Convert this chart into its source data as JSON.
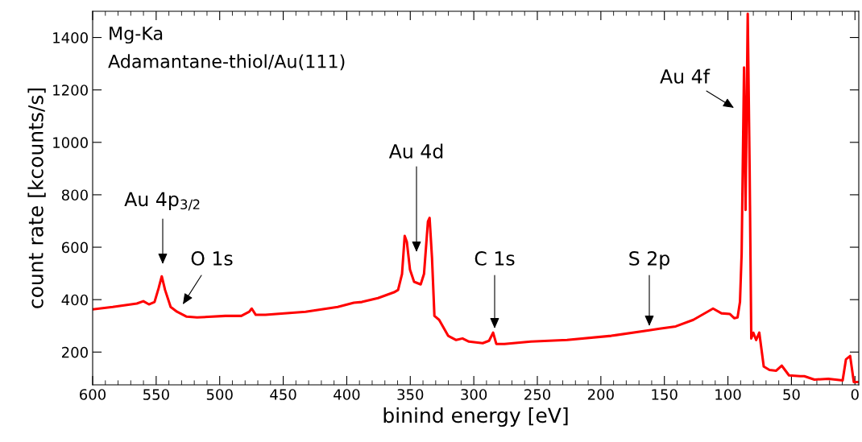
{
  "chart_data": {
    "type": "line",
    "xlabel": "binind energy [eV]",
    "ylabel": "count rate [kcounts/s]",
    "xlim": [
      600,
      -3
    ],
    "xticks": [
      600,
      550,
      500,
      450,
      400,
      350,
      300,
      250,
      200,
      150,
      100,
      50,
      0
    ],
    "ylim": [
      75,
      1500
    ],
    "yticks": [
      200,
      400,
      600,
      800,
      1000,
      1200,
      1400
    ],
    "grid": false,
    "marker": "none",
    "line_style": "solid",
    "series": [
      {
        "color": "#ff0000",
        "x": [
          600,
          584.2,
          565.2,
          560.1,
          555.7,
          551.3,
          548.1,
          545.6,
          543.0,
          538.6,
          533.6,
          526.0,
          517.8,
          495.6,
          483.0,
          476.7,
          474.8,
          471.6,
          464.0,
          432.4,
          407.1,
          394.4,
          388.1,
          375.4,
          362.8,
          359.6,
          356.5,
          354.4,
          352.7,
          350.2,
          347.0,
          341.8,
          339.2,
          336.1,
          334.8,
          332.9,
          331.0,
          327.3,
          320.2,
          313.9,
          308.9,
          303.8,
          293.0,
          288.0,
          284.8,
          282.3,
          275.9,
          255.1,
          226.6,
          191.8,
          162.0,
          153.8,
          141.1,
          127.2,
          111.7,
          105.1,
          98.4,
          94.9,
          92.4,
          90.5,
          89.2,
          87.3,
          86.1,
          84.4,
          82.9,
          81.6,
          80.0,
          77.8,
          75.3,
          71.8,
          67.3,
          62.0,
          57.6,
          51.9,
          43.0,
          39.9,
          31.9,
          20.9,
          9.7,
          7.1,
          3.8,
          0.9,
          -1.9
        ],
        "values": [
          363,
          372,
          385,
          394,
          382,
          391,
          443,
          489,
          437,
          372,
          354,
          335,
          332,
          338,
          338,
          354,
          366,
          342,
          342,
          354,
          372,
          388,
          391,
          406,
          428,
          437,
          498,
          643,
          620,
          514,
          468,
          458,
          498,
          698,
          712,
          560,
          338,
          323,
          262,
          246,
          252,
          240,
          234,
          243,
          274,
          231,
          231,
          240,
          246,
          262,
          283,
          289,
          298,
          323,
          366,
          348,
          345,
          329,
          332,
          391,
          575,
          1286,
          742,
          1491,
          898,
          252,
          274,
          246,
          274,
          145,
          132,
          129,
          148,
          111,
          108,
          108,
          95,
          98,
          92,
          172,
          185,
          86,
          86
        ]
      }
    ],
    "annotations": [
      "Mg-Ka",
      "Adamantane-thiol/Au(111)",
      "Au 4p$_{3/2}$",
      "O 1s",
      "Au 4d",
      "C 1s",
      "S 2p",
      "Au 4f"
    ]
  }
}
